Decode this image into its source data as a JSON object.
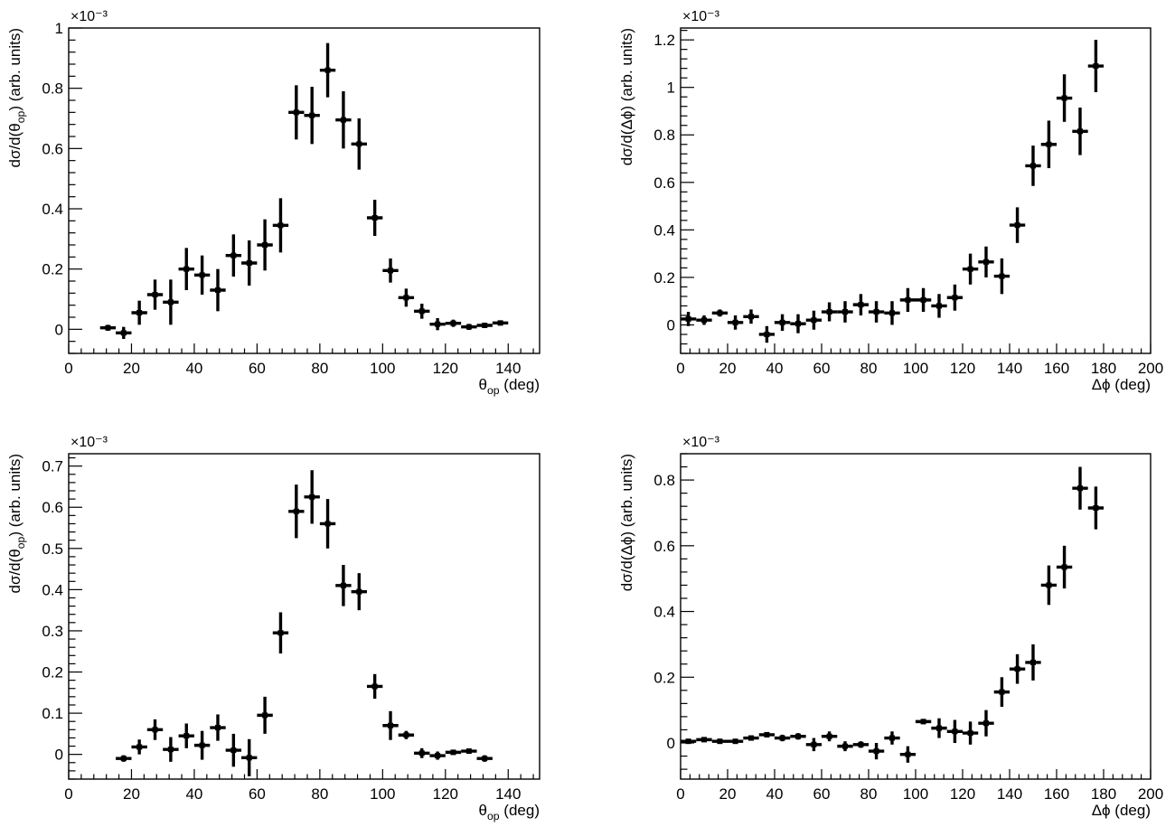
{
  "chart_data": [
    {
      "id": "tl",
      "type": "scatter",
      "marker": "errorbar",
      "xlabel": "θ_op (deg)",
      "ylabel": "dσ/d(θ_op) (arb. units)",
      "exponent": "×10⁻³",
      "xlim": [
        0,
        150
      ],
      "ylim": [
        -0.08,
        1.0
      ],
      "xticks": [
        0,
        20,
        40,
        60,
        80,
        100,
        120,
        140
      ],
      "yticks": [
        0,
        0.2,
        0.4,
        0.6,
        0.8,
        1
      ],
      "x_tick_labels": [
        "0",
        "20",
        "40",
        "60",
        "80",
        "100",
        "120",
        "140"
      ],
      "y_tick_labels": [
        "0",
        "0.2",
        "0.4",
        "0.6",
        "0.8",
        "1"
      ],
      "bin_width": 5,
      "x": [
        12.5,
        17.5,
        22.5,
        27.5,
        32.5,
        37.5,
        42.5,
        47.5,
        52.5,
        57.5,
        62.5,
        67.5,
        72.5,
        77.5,
        82.5,
        87.5,
        92.5,
        97.5,
        102.5,
        107.5,
        112.5,
        117.5,
        122.5,
        127.5,
        132.5,
        137.5
      ],
      "y": [
        0.005,
        -0.012,
        0.055,
        0.115,
        0.09,
        0.2,
        0.18,
        0.13,
        0.245,
        0.22,
        0.28,
        0.345,
        0.72,
        0.71,
        0.86,
        0.695,
        0.615,
        0.37,
        0.195,
        0.105,
        0.06,
        0.017,
        0.02,
        0.008,
        0.013,
        0.021
      ],
      "yerr": [
        0.01,
        0.02,
        0.04,
        0.05,
        0.075,
        0.07,
        0.065,
        0.07,
        0.07,
        0.075,
        0.085,
        0.09,
        0.09,
        0.095,
        0.09,
        0.095,
        0.085,
        0.06,
        0.04,
        0.03,
        0.025,
        0.02,
        0.012,
        0.01,
        0.008,
        0.008
      ]
    },
    {
      "id": "tr",
      "type": "scatter",
      "marker": "errorbar",
      "xlabel": "Δϕ (deg)",
      "ylabel": "dσ/d(Δϕ) (arb. units)",
      "exponent": "×10⁻³",
      "xlim": [
        0,
        200
      ],
      "ylim": [
        -0.12,
        1.25
      ],
      "xticks": [
        0,
        20,
        40,
        60,
        80,
        100,
        120,
        140,
        160,
        180,
        200
      ],
      "yticks": [
        0,
        0.2,
        0.4,
        0.6,
        0.8,
        1,
        1.2
      ],
      "x_tick_labels": [
        "0",
        "20",
        "40",
        "60",
        "80",
        "100",
        "120",
        "140",
        "160",
        "180",
        "200"
      ],
      "y_tick_labels": [
        "0",
        "0.2",
        "0.4",
        "0.6",
        "0.8",
        "1",
        "1.2"
      ],
      "bin_width": 6.67,
      "x": [
        3.3,
        10,
        16.7,
        23.3,
        30,
        36.7,
        43.3,
        50,
        56.7,
        63.3,
        70,
        76.7,
        83.3,
        90,
        96.7,
        103.3,
        110,
        116.7,
        123.3,
        130,
        136.7,
        143.3,
        150,
        156.7,
        163.3,
        170,
        176.7
      ],
      "y": [
        0.025,
        0.02,
        0.05,
        0.01,
        0.035,
        -0.04,
        0.01,
        0.005,
        0.02,
        0.055,
        0.055,
        0.085,
        0.055,
        0.05,
        0.105,
        0.105,
        0.08,
        0.115,
        0.235,
        0.265,
        0.205,
        0.42,
        0.67,
        0.76,
        0.955,
        0.815,
        1.09
      ],
      "yerr": [
        0.03,
        0.02,
        0.015,
        0.03,
        0.03,
        0.035,
        0.035,
        0.04,
        0.04,
        0.04,
        0.045,
        0.045,
        0.045,
        0.05,
        0.05,
        0.05,
        0.05,
        0.055,
        0.065,
        0.065,
        0.075,
        0.075,
        0.085,
        0.1,
        0.1,
        0.1,
        0.11
      ]
    },
    {
      "id": "bl",
      "type": "scatter",
      "marker": "errorbar",
      "xlabel": "θ_op (deg)",
      "ylabel": "dσ/d(θ_op) (arb. units)",
      "exponent": "×10⁻³",
      "xlim": [
        0,
        150
      ],
      "ylim": [
        -0.06,
        0.73
      ],
      "xticks": [
        0,
        20,
        40,
        60,
        80,
        100,
        120,
        140
      ],
      "yticks": [
        0,
        0.1,
        0.2,
        0.3,
        0.4,
        0.5,
        0.6,
        0.7
      ],
      "x_tick_labels": [
        "0",
        "20",
        "40",
        "60",
        "80",
        "100",
        "120",
        "140"
      ],
      "y_tick_labels": [
        "0",
        "0.1",
        "0.2",
        "0.3",
        "0.4",
        "0.5",
        "0.6",
        "0.7"
      ],
      "bin_width": 5,
      "x": [
        17.5,
        22.5,
        27.5,
        32.5,
        37.5,
        42.5,
        47.5,
        52.5,
        57.5,
        62.5,
        67.5,
        72.5,
        77.5,
        82.5,
        87.5,
        92.5,
        97.5,
        102.5,
        107.5,
        112.5,
        117.5,
        122.5,
        127.5,
        132.5
      ],
      "y": [
        -0.01,
        0.018,
        0.06,
        0.012,
        0.045,
        0.022,
        0.065,
        0.01,
        -0.008,
        0.095,
        0.295,
        0.59,
        0.625,
        0.56,
        0.41,
        0.395,
        0.165,
        0.07,
        0.047,
        0.003,
        -0.003,
        0.005,
        0.008,
        -0.01
      ],
      "yerr": [
        0.008,
        0.018,
        0.025,
        0.03,
        0.03,
        0.035,
        0.032,
        0.04,
        0.045,
        0.045,
        0.05,
        0.065,
        0.065,
        0.06,
        0.05,
        0.045,
        0.03,
        0.035,
        0.01,
        0.012,
        0.01,
        0.006,
        0.006,
        0.008
      ]
    },
    {
      "id": "br",
      "type": "scatter",
      "marker": "errorbar",
      "xlabel": "Δϕ (deg)",
      "ylabel": "dσ/d(Δϕ) (arb. units)",
      "exponent": "×10⁻³",
      "xlim": [
        0,
        200
      ],
      "ylim": [
        -0.11,
        0.88
      ],
      "xticks": [
        0,
        20,
        40,
        60,
        80,
        100,
        120,
        140,
        160,
        180,
        200
      ],
      "yticks": [
        0,
        0.2,
        0.4,
        0.6,
        0.8
      ],
      "x_tick_labels": [
        "0",
        "20",
        "40",
        "60",
        "80",
        "100",
        "120",
        "140",
        "160",
        "180",
        "200"
      ],
      "y_tick_labels": [
        "0",
        "0.2",
        "0.4",
        "0.6",
        "0.8"
      ],
      "bin_width": 6.67,
      "x": [
        3.3,
        10,
        16.7,
        23.3,
        30,
        36.7,
        43.3,
        50,
        56.7,
        63.3,
        70,
        76.7,
        83.3,
        90,
        96.7,
        103.3,
        110,
        116.7,
        123.3,
        130,
        136.7,
        143.3,
        150,
        156.7,
        163.3,
        170,
        176.7
      ],
      "y": [
        0.005,
        0.01,
        0.005,
        0.005,
        0.015,
        0.025,
        0.015,
        0.02,
        -0.005,
        0.02,
        -0.01,
        -0.005,
        -0.025,
        0.015,
        -0.035,
        0.065,
        0.045,
        0.035,
        0.03,
        0.06,
        0.155,
        0.225,
        0.245,
        0.48,
        0.535,
        0.775,
        0.715
      ],
      "yerr": [
        0.005,
        0.005,
        0.005,
        0.005,
        0.005,
        0.008,
        0.01,
        0.01,
        0.02,
        0.015,
        0.015,
        0.01,
        0.025,
        0.02,
        0.025,
        0.008,
        0.03,
        0.035,
        0.035,
        0.04,
        0.045,
        0.045,
        0.055,
        0.06,
        0.065,
        0.065,
        0.065
      ]
    }
  ]
}
